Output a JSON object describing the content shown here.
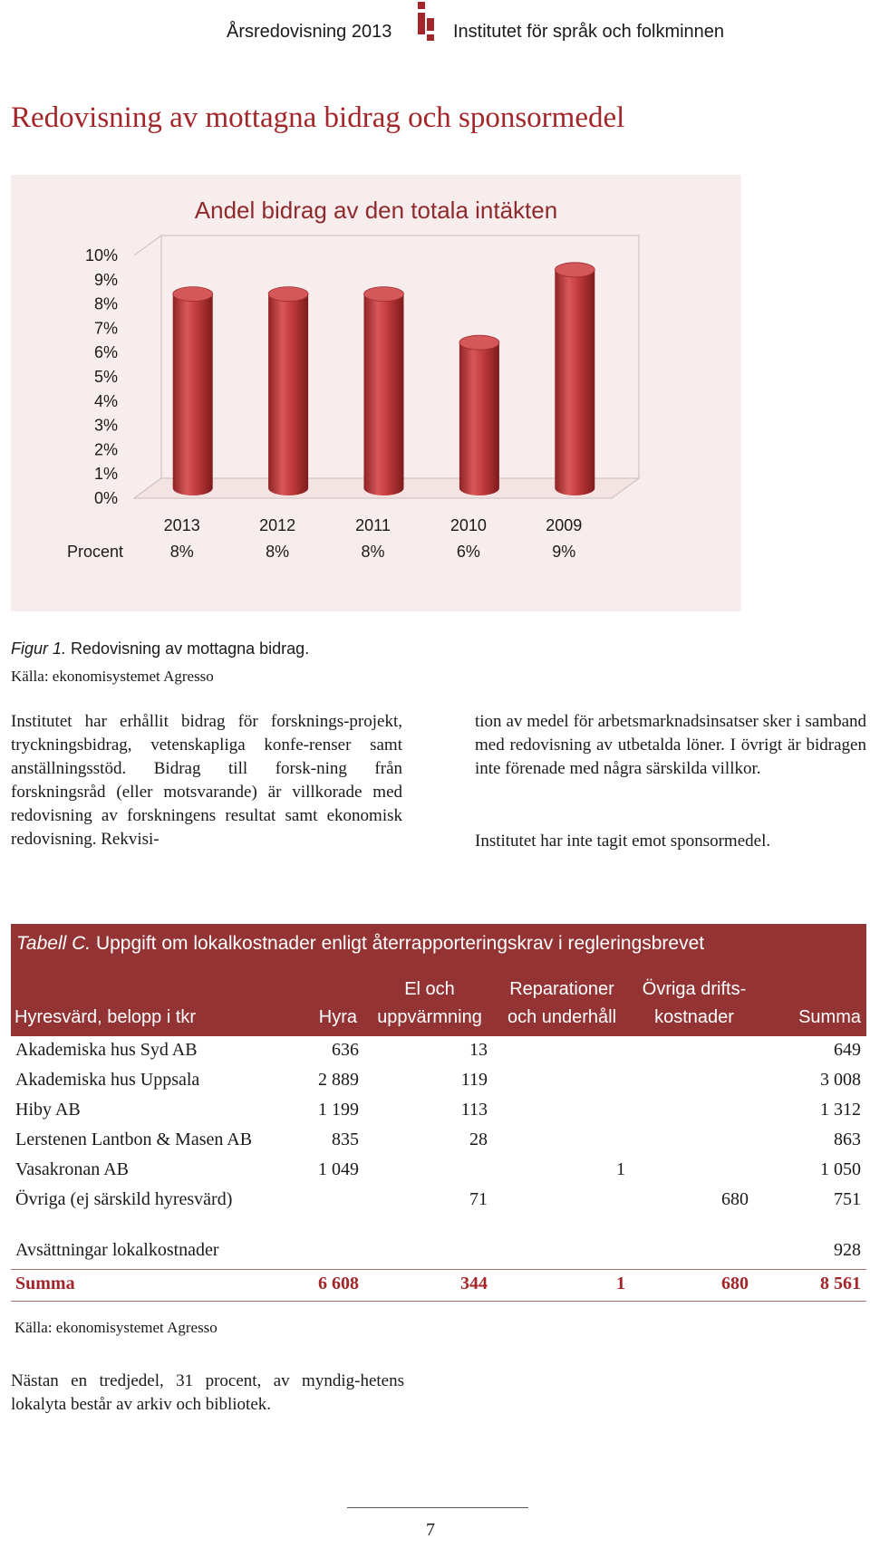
{
  "header": {
    "left": "Årsredovisning 2013",
    "right": "Institutet för språk och folkminnen",
    "logo_icon": "isof-logo-icon"
  },
  "title": "Redovisning av mottagna bidrag och sponsormedel",
  "chart_data": {
    "type": "bar",
    "title": "Andel bidrag av den totala intäkten",
    "categories": [
      "2013",
      "2012",
      "2011",
      "2010",
      "2009"
    ],
    "values": [
      8,
      8,
      8,
      6,
      9
    ],
    "value_labels": [
      "8%",
      "8%",
      "8%",
      "6%",
      "9%"
    ],
    "row_label": "Procent",
    "y_ticks": [
      "10%",
      "9%",
      "8%",
      "7%",
      "6%",
      "5%",
      "4%",
      "3%",
      "2%",
      "1%",
      "0%"
    ],
    "ylim": [
      0,
      10
    ],
    "grid": false,
    "bar_color": "#c0393b",
    "background_color": "#f8eded"
  },
  "figure": {
    "caption_prefix": "Figur 1.",
    "caption_text": " Redovisning av mottagna bidrag.",
    "source": "Källa: ekonomisystemet Agresso"
  },
  "body": {
    "para_left": "Institutet har erhållit bidrag för forsknings-projekt, tryckningsbidrag, vetenskapliga konfe-renser samt anställningsstöd. Bidrag till forsk-ning från forskningsråd (eller motsvarande) är villkorade med redovisning av forskningens resultat samt ekonomisk redovisning. Rekvisi-",
    "para_right1": "tion av medel för arbetsmarknadsinsatser sker i samband med redovisning av utbetalda löner. I övrigt är bidragen inte förenade med några särskilda villkor.",
    "para_right2": "Institutet har inte tagit emot sponsormedel."
  },
  "table": {
    "caption_prefix": "Tabell C.",
    "caption_text": " Uppgift om lokalkostnader enligt återrapporteringskrav i regleringsbrevet",
    "header_color": "#943334",
    "headers": {
      "name": "Hyresvärd, belopp i tkr",
      "hyra": "Hyra",
      "el_1": "El och",
      "el_2": "uppvärmning",
      "rep_1": "Reparationer",
      "rep_2": "och underhåll",
      "ovr_1": "Övriga drifts-",
      "ovr_2": "kostnader",
      "summa": "Summa"
    },
    "rows": [
      {
        "name": "Akademiska hus Syd AB",
        "hyra": "636",
        "el": "13",
        "rep": "",
        "ovr": "",
        "summa": "649"
      },
      {
        "name": "Akademiska hus Uppsala",
        "hyra": "2 889",
        "el": "119",
        "rep": "",
        "ovr": "",
        "summa": "3 008"
      },
      {
        "name": "Hiby AB",
        "hyra": "1 199",
        "el": "113",
        "rep": "",
        "ovr": "",
        "summa": "1 312"
      },
      {
        "name": "Lerstenen Lantbon & Masen AB",
        "hyra": "835",
        "el": "28",
        "rep": "",
        "ovr": "",
        "summa": "863"
      },
      {
        "name": "Vasakronan AB",
        "hyra": "1 049",
        "el": "",
        "rep": "1",
        "ovr": "",
        "summa": "1 050"
      },
      {
        "name": "Övriga (ej särskild hyresvärd)",
        "hyra": "",
        "el": "71",
        "rep": "",
        "ovr": "680",
        "summa": "751"
      }
    ],
    "avsattning": {
      "name": "Avsättningar lokalkostnader",
      "summa": "928"
    },
    "total": {
      "name": "Summa",
      "hyra": "6 608",
      "el": "344",
      "rep": "1",
      "ovr": "680",
      "summa": "8 561"
    },
    "source": "Källa: ekonomisystemet Agresso"
  },
  "footer": {
    "para": "Nästan en tredjedel, 31 procent, av myndig-hetens lokalyta består av arkiv och bibliotek.",
    "page_number": "7"
  }
}
